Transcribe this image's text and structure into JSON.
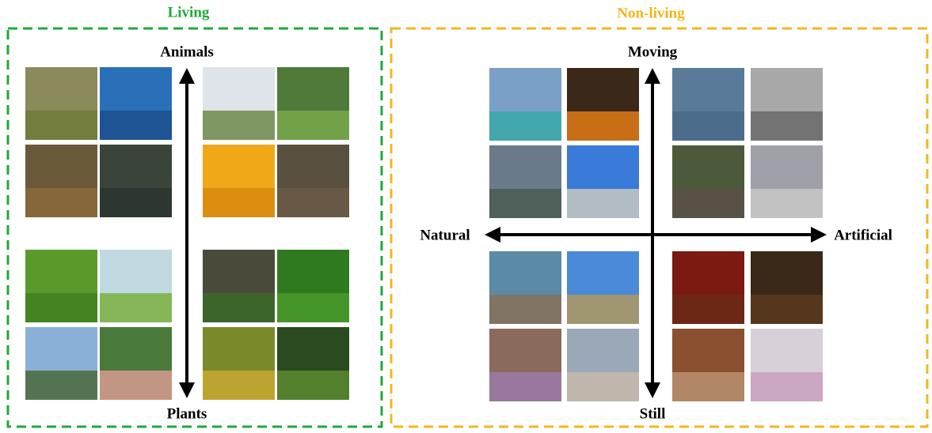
{
  "groups": [
    {
      "title": "Living",
      "axis": {
        "top": "Animals",
        "bottom": "Plants"
      }
    },
    {
      "title": "Non-living",
      "axis": {
        "top": "Moving",
        "bottom": "Still",
        "left": "Natural",
        "right": "Artificial"
      }
    }
  ]
}
